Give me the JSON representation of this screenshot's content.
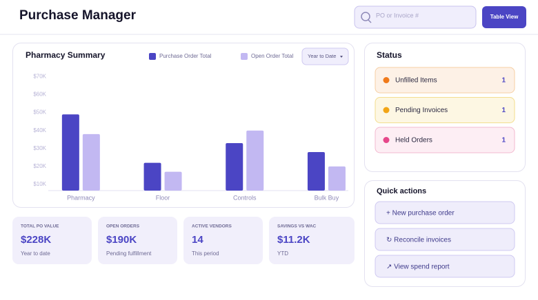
{
  "header": {
    "title": "Purchase Manager",
    "search_placeholder": "PO or Invoice #",
    "button": "Table View"
  },
  "chart_data": {
    "type": "bar",
    "title": "Pharmacy Summary",
    "period": "Year to Date",
    "categories": [
      "Pharmacy",
      "Floor",
      "Controls",
      "Bulk Buy"
    ],
    "series": [
      {
        "name": "Purchase Order Total",
        "color": "#4b45c4",
        "values": [
          49000,
          22000,
          33000,
          28000
        ]
      },
      {
        "name": "Open Order Total",
        "color": "#c2b8f2",
        "values": [
          38000,
          17000,
          40000,
          20000
        ]
      }
    ],
    "ylim": [
      6500,
      72500
    ],
    "yticks": [
      {
        "value": 10000,
        "label": "$10K"
      },
      {
        "value": 20000,
        "label": "$20K"
      },
      {
        "value": 30000,
        "label": "$30K"
      },
      {
        "value": 40000,
        "label": "$40K"
      },
      {
        "value": 50000,
        "label": "$50K"
      },
      {
        "value": 60000,
        "label": "$60K"
      },
      {
        "value": 70000,
        "label": "$70K"
      }
    ],
    "grid": false
  },
  "kpis": [
    {
      "label": "TOTAL PO VALUE",
      "value": "$228K",
      "note": "Year to date"
    },
    {
      "label": "OPEN ORDERS",
      "value": "$190K",
      "note": "Pending fulfillment"
    },
    {
      "label": "ACTIVE VENDORS",
      "value": "14",
      "note": "This period"
    },
    {
      "label": "SAVINGS VS WAC",
      "value": "$11.2K",
      "note": "YTD"
    }
  ],
  "status": {
    "title": "Status",
    "items": [
      {
        "label": "Unfilled Items",
        "count": 1
      },
      {
        "label": "Pending Invoices",
        "count": 1
      },
      {
        "label": "Held Orders",
        "count": 1
      }
    ]
  },
  "quick_actions": {
    "title": "Quick actions",
    "items": [
      "+ New purchase order",
      "↻ Reconcile invoices",
      "↗ View spend report"
    ]
  }
}
